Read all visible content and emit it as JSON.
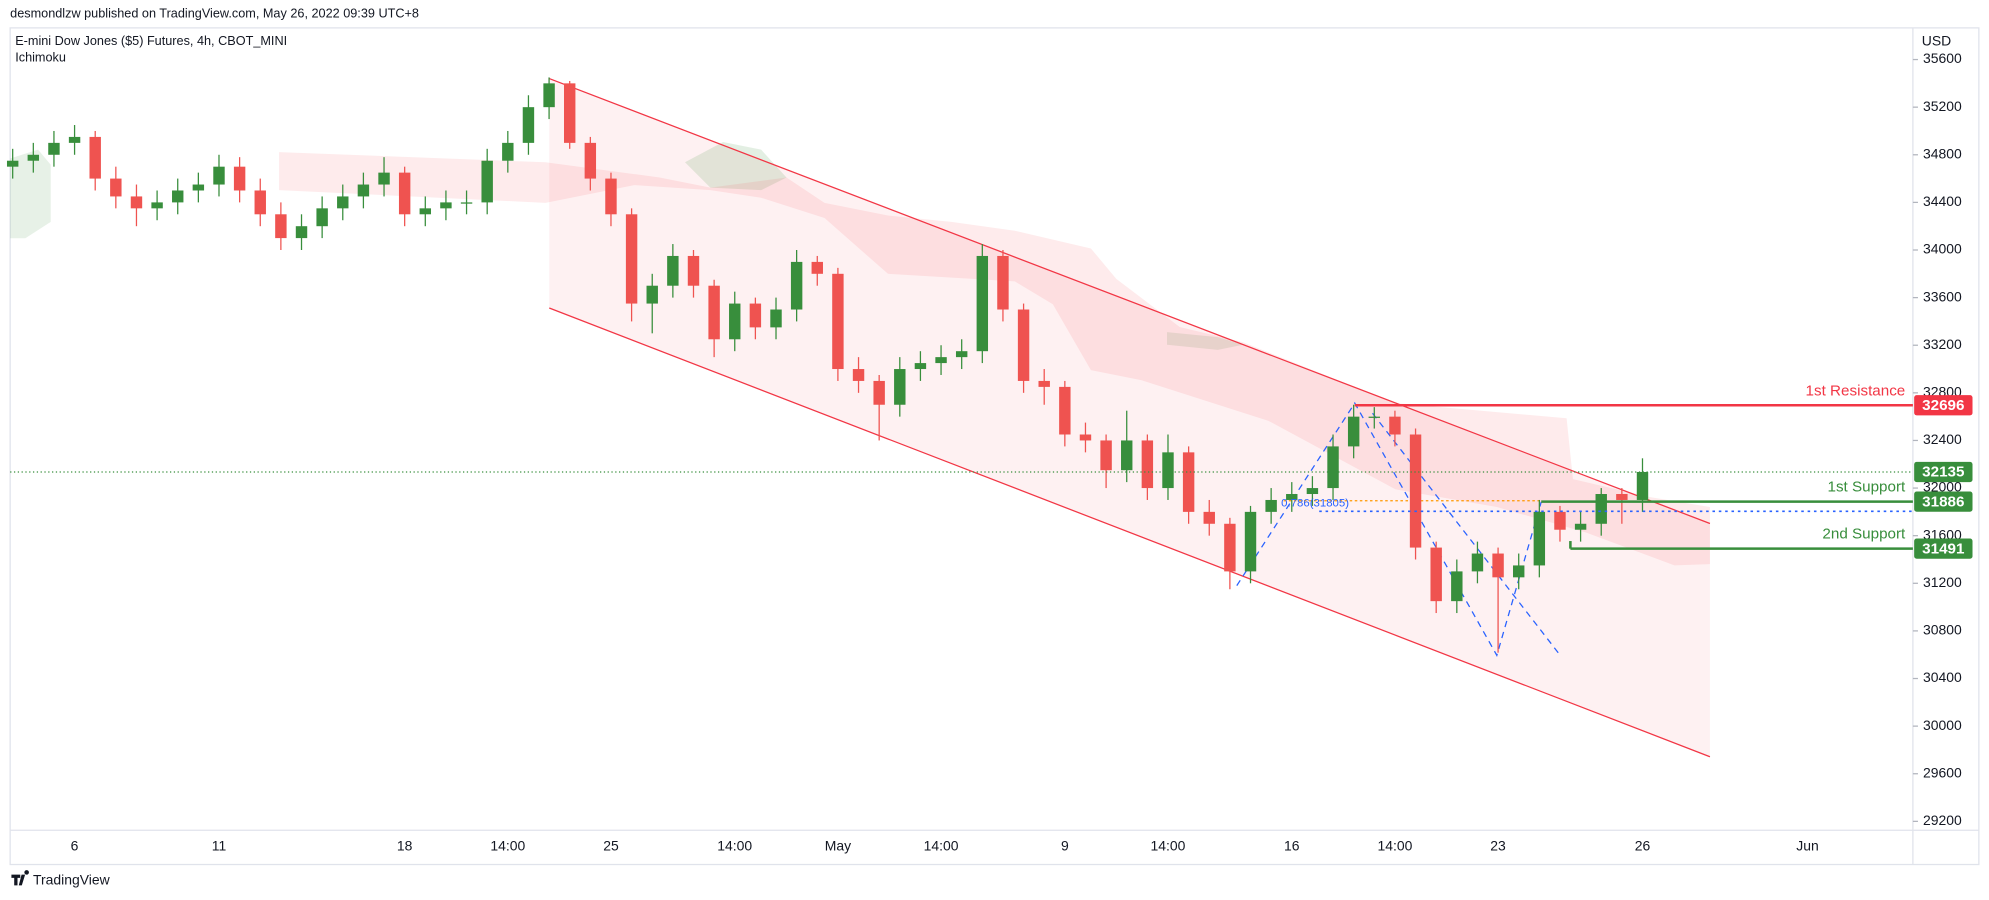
{
  "chart_data": {
    "type": "candlestick",
    "header": "desmondlzw published on TradingView.com, May 26, 2022 09:39 UTC+8",
    "title": "E-mini Dow Jones ($5) Futures, 4h, CBOT_MINI",
    "indicator": "Ichimoku",
    "currency": "USD",
    "brand": "TradingView",
    "up_color": "#388e3c",
    "down_color": "#ef5350",
    "categories": [
      null,
      null,
      null,
      "6",
      null,
      null,
      null,
      null,
      null,
      null,
      "11",
      null,
      null,
      null,
      null,
      null,
      null,
      null,
      null,
      "18",
      null,
      null,
      null,
      null,
      "14:00",
      null,
      null,
      null,
      null,
      "25",
      null,
      null,
      null,
      null,
      null,
      "14:00",
      null,
      null,
      null,
      null,
      "May",
      null,
      null,
      null,
      null,
      "14:00",
      null,
      null,
      null,
      null,
      null,
      "9",
      null,
      null,
      null,
      null,
      "14:00",
      null,
      null,
      null,
      null,
      null,
      "16",
      null,
      null,
      null,
      null,
      "14:00",
      null,
      null,
      null,
      null,
      "23",
      null,
      null,
      null,
      null,
      null,
      null,
      "26",
      null,
      null,
      null,
      null,
      null,
      null,
      null,
      "Jun",
      null,
      null,
      null,
      null
    ],
    "open": [
      34700,
      34750,
      34800,
      34900,
      34950,
      34600,
      34450,
      34350,
      34400,
      34500,
      34550,
      34700,
      34500,
      34300,
      34100,
      34200,
      34350,
      34450,
      34550,
      34650,
      34300,
      34350,
      34400,
      34400,
      34750,
      34900,
      35200,
      35400,
      34900,
      34600,
      34300,
      33550,
      33700,
      33950,
      33700,
      33250,
      33550,
      33350,
      33500,
      33900,
      33800,
      33000,
      32900,
      32700,
      33000,
      33050,
      33100,
      33150,
      33950,
      33500,
      32900,
      32850,
      32450,
      32400,
      32150,
      32400,
      32000,
      32300,
      31800,
      31700,
      31300,
      31800,
      31900,
      31950,
      32000,
      32350,
      32600,
      32600,
      32450,
      31500,
      31050,
      31300,
      31450,
      31250,
      31350,
      31800,
      31650,
      31700,
      31950,
      31900,
      null,
      null,
      null,
      null,
      null,
      null,
      null,
      null,
      null,
      null,
      null,
      null
    ],
    "high": [
      34850,
      34900,
      35000,
      35050,
      35000,
      34700,
      34550,
      34500,
      34600,
      34650,
      34800,
      34780,
      34600,
      34400,
      34300,
      34450,
      34550,
      34650,
      34780,
      34700,
      34450,
      34500,
      34500,
      34850,
      35000,
      35300,
      35450,
      35420,
      34950,
      34650,
      34350,
      33800,
      34050,
      34000,
      33750,
      33650,
      33600,
      33600,
      34000,
      33950,
      33850,
      33100,
      32950,
      33100,
      33150,
      33200,
      33250,
      34050,
      34000,
      33550,
      33000,
      32900,
      32550,
      32450,
      32650,
      32450,
      32450,
      32350,
      31900,
      31750,
      31850,
      32000,
      32050,
      32100,
      32450,
      32700,
      32680,
      32650,
      32500,
      31550,
      31400,
      31550,
      31500,
      31450,
      31900,
      31850,
      31800,
      32000,
      32000,
      32250,
      null,
      null,
      null,
      null,
      null,
      null,
      null,
      null,
      null,
      null,
      null,
      null
    ],
    "low": [
      34600,
      34650,
      34700,
      34800,
      34500,
      34350,
      34200,
      34250,
      34300,
      34400,
      34450,
      34400,
      34200,
      34000,
      34000,
      34100,
      34250,
      34350,
      34450,
      34200,
      34200,
      34250,
      34300,
      34300,
      34650,
      34800,
      35100,
      34850,
      34500,
      34200,
      33400,
      33300,
      33600,
      33600,
      33100,
      33150,
      33250,
      33250,
      33400,
      33700,
      32900,
      32800,
      32400,
      32600,
      32900,
      32950,
      33000,
      33050,
      33400,
      32800,
      32700,
      32350,
      32300,
      32000,
      32050,
      31900,
      31900,
      31700,
      31600,
      31150,
      31200,
      31700,
      31800,
      31850,
      31900,
      32250,
      32500,
      32350,
      31400,
      30950,
      30950,
      31200,
      30617,
      31150,
      31250,
      31550,
      31550,
      31600,
      31700,
      31800,
      null,
      null,
      null,
      null,
      null,
      null,
      null,
      null,
      null,
      null,
      null,
      null
    ],
    "close": [
      34750,
      34800,
      34900,
      34950,
      34600,
      34450,
      34350,
      34400,
      34500,
      34550,
      34700,
      34500,
      34300,
      34100,
      34200,
      34350,
      34450,
      34550,
      34650,
      34300,
      34350,
      34400,
      34400,
      34750,
      34900,
      35200,
      35400,
      34900,
      34600,
      34300,
      33550,
      33700,
      33950,
      33700,
      33250,
      33550,
      33350,
      33500,
      33900,
      33800,
      33000,
      32900,
      32700,
      33000,
      33050,
      33100,
      33150,
      33950,
      33500,
      32900,
      32850,
      32450,
      32400,
      32150,
      32400,
      32000,
      32300,
      31800,
      31700,
      31300,
      31800,
      31900,
      31950,
      32000,
      32350,
      32600,
      32600,
      32450,
      31500,
      31050,
      31300,
      31450,
      31250,
      31350,
      31800,
      31650,
      31700,
      31950,
      31900,
      32135,
      null,
      null,
      null,
      null,
      null,
      null,
      null,
      null,
      null,
      null,
      null,
      null
    ],
    "ylim": [
      29125,
      35866
    ],
    "yticks": [
      29200,
      29600,
      30000,
      30400,
      30800,
      31200,
      31600,
      32000,
      32400,
      32800,
      33200,
      33600,
      34000,
      34400,
      34800,
      35200,
      35600
    ],
    "last_price": 32135,
    "last_price_color": "#388e3c",
    "levels": [
      {
        "name": "1st Resistance",
        "value": 32696,
        "color": "#f23645"
      },
      {
        "name": "1st Support",
        "value": 31886,
        "color": "#388e3c"
      },
      {
        "name": "2nd Support",
        "value": 31491,
        "color": "#388e3c"
      }
    ],
    "fib": {
      "value": 31805,
      "label": "0.786(31805)",
      "color": "#2962ff"
    },
    "grid": false
  }
}
